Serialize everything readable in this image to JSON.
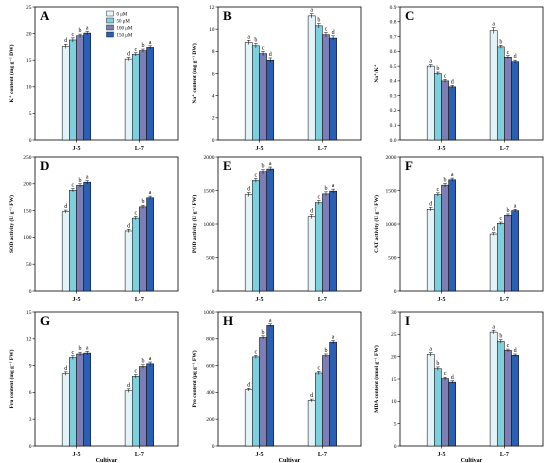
{
  "colors": {
    "series": [
      "#e3f3f8",
      "#7fcfdf",
      "#7b7fb5",
      "#2d5fb0"
    ],
    "frame": "#000000"
  },
  "legend": [
    "0 μM",
    "50 μM",
    "100 μM",
    "150 μM"
  ],
  "x_axis_title": "Cultivar",
  "chart_data": [
    {
      "type": "bar",
      "panel": "A",
      "ylabel": "K⁺ content (mg g⁻¹ DW)",
      "categories": [
        "J-5",
        "L-7"
      ],
      "ylim": [
        0,
        25
      ],
      "ticks": [
        0,
        5,
        10,
        15,
        20,
        25
      ],
      "series": [
        {
          "name": "0 μM",
          "values": [
            17.6,
            15.2
          ]
        },
        {
          "name": "50 μM",
          "values": [
            18.8,
            16.1
          ]
        },
        {
          "name": "100 μM",
          "values": [
            19.6,
            16.8
          ]
        },
        {
          "name": "150 μM",
          "values": [
            20.1,
            17.4
          ]
        }
      ],
      "errors": [
        [
          0.4,
          0.3
        ],
        [
          0.4,
          0.3
        ],
        [
          0.3,
          0.3
        ],
        [
          0.3,
          0.3
        ]
      ],
      "letters": [
        [
          "d",
          "c",
          "b",
          "a"
        ],
        [
          "d",
          "c",
          "b",
          "a"
        ]
      ]
    },
    {
      "type": "bar",
      "panel": "B",
      "ylabel": "Na⁺ content (mg g⁻¹ DW)",
      "categories": [
        "J-5",
        "L-7"
      ],
      "ylim": [
        0,
        12
      ],
      "ticks": [
        0,
        2,
        4,
        6,
        8,
        10,
        12
      ],
      "series": [
        {
          "name": "0 μM",
          "values": [
            8.8,
            11.2
          ]
        },
        {
          "name": "50 μM",
          "values": [
            8.5,
            10.3
          ]
        },
        {
          "name": "100 μM",
          "values": [
            7.8,
            9.5
          ]
        },
        {
          "name": "150 μM",
          "values": [
            7.2,
            9.2
          ]
        }
      ],
      "errors": [
        [
          0.2,
          0.2
        ],
        [
          0.2,
          0.2
        ],
        [
          0.2,
          0.2
        ],
        [
          0.2,
          0.2
        ]
      ],
      "letters": [
        [
          "a",
          "b",
          "c",
          "d"
        ],
        [
          "a",
          "b",
          "c",
          "d"
        ]
      ]
    },
    {
      "type": "bar",
      "panel": "C",
      "ylabel": "Na⁺/K⁺",
      "categories": [
        "J-5",
        "L-7"
      ],
      "ylim": [
        0,
        0.9
      ],
      "ticks": [
        0.0,
        0.1,
        0.2,
        0.3,
        0.4,
        0.5,
        0.6,
        0.7,
        0.8,
        0.9
      ],
      "series": [
        {
          "name": "0 μM",
          "values": [
            0.5,
            0.74
          ]
        },
        {
          "name": "50 μM",
          "values": [
            0.45,
            0.63
          ]
        },
        {
          "name": "100 μM",
          "values": [
            0.4,
            0.56
          ]
        },
        {
          "name": "150 μM",
          "values": [
            0.36,
            0.53
          ]
        }
      ],
      "errors": [
        [
          0.01,
          0.02
        ],
        [
          0.01,
          0.01
        ],
        [
          0.01,
          0.01
        ],
        [
          0.01,
          0.01
        ]
      ],
      "letters": [
        [
          "a",
          "b",
          "c",
          "d"
        ],
        [
          "a",
          "b",
          "c",
          "d"
        ]
      ]
    },
    {
      "type": "bar",
      "panel": "D",
      "ylabel": "SOD activity (U g⁻¹ FW)",
      "categories": [
        "J-5",
        "L-7"
      ],
      "ylim": [
        0,
        250
      ],
      "ticks": [
        0,
        50,
        100,
        150,
        200,
        250
      ],
      "series": [
        {
          "name": "0 μM",
          "values": [
            148,
            112
          ]
        },
        {
          "name": "50 μM",
          "values": [
            188,
            136
          ]
        },
        {
          "name": "100 μM",
          "values": [
            197,
            157
          ]
        },
        {
          "name": "150 μM",
          "values": [
            203,
            174
          ]
        }
      ],
      "errors": [
        [
          3,
          3
        ],
        [
          3,
          3
        ],
        [
          3,
          3
        ],
        [
          3,
          3
        ]
      ],
      "letters": [
        [
          "d",
          "c",
          "b",
          "a"
        ],
        [
          "d",
          "c",
          "b",
          "a"
        ]
      ]
    },
    {
      "type": "bar",
      "panel": "E",
      "ylabel": "POD activity (U g⁻¹ FW)",
      "categories": [
        "J-5",
        "L-7"
      ],
      "ylim": [
        0,
        2000
      ],
      "ticks": [
        0,
        500,
        1000,
        1500,
        2000
      ],
      "series": [
        {
          "name": "0 μM",
          "values": [
            1440,
            1110
          ]
        },
        {
          "name": "50 μM",
          "values": [
            1650,
            1320
          ]
        },
        {
          "name": "100 μM",
          "values": [
            1780,
            1450
          ]
        },
        {
          "name": "150 μM",
          "values": [
            1820,
            1490
          ]
        }
      ],
      "errors": [
        [
          30,
          30
        ],
        [
          30,
          30
        ],
        [
          30,
          30
        ],
        [
          30,
          30
        ]
      ],
      "letters": [
        [
          "d",
          "c",
          "b",
          "a"
        ],
        [
          "d",
          "c",
          "b",
          "a"
        ]
      ]
    },
    {
      "type": "bar",
      "panel": "F",
      "ylabel": "CAT activity (U g⁻¹ FW)",
      "categories": [
        "J-5",
        "L-7"
      ],
      "ylim": [
        0,
        2000
      ],
      "ticks": [
        0,
        500,
        1000,
        1500,
        2000
      ],
      "series": [
        {
          "name": "0 μM",
          "values": [
            1220,
            850
          ]
        },
        {
          "name": "50 μM",
          "values": [
            1440,
            1010
          ]
        },
        {
          "name": "100 μM",
          "values": [
            1580,
            1130
          ]
        },
        {
          "name": "150 μM",
          "values": [
            1660,
            1200
          ]
        }
      ],
      "errors": [
        [
          25,
          20
        ],
        [
          25,
          20
        ],
        [
          25,
          20
        ],
        [
          25,
          20
        ]
      ],
      "letters": [
        [
          "d",
          "c",
          "b",
          "a"
        ],
        [
          "d",
          "c",
          "b",
          "a"
        ]
      ]
    },
    {
      "type": "bar",
      "panel": "G",
      "ylabel": "Fru content (mg g⁻¹ FW)",
      "categories": [
        "J-5",
        "L-7"
      ],
      "ylim": [
        0,
        15
      ],
      "ticks": [
        0,
        3,
        6,
        9,
        12,
        15
      ],
      "series": [
        {
          "name": "0 μM",
          "values": [
            8.1,
            6.2
          ]
        },
        {
          "name": "50 μM",
          "values": [
            9.9,
            7.8
          ]
        },
        {
          "name": "100 μM",
          "values": [
            10.3,
            8.9
          ]
        },
        {
          "name": "150 μM",
          "values": [
            10.4,
            9.2
          ]
        }
      ],
      "errors": [
        [
          0.2,
          0.2
        ],
        [
          0.2,
          0.2
        ],
        [
          0.2,
          0.2
        ],
        [
          0.2,
          0.2
        ]
      ],
      "letters": [
        [
          "d",
          "c",
          "b",
          "a"
        ],
        [
          "d",
          "c",
          "b",
          "a"
        ]
      ]
    },
    {
      "type": "bar",
      "panel": "H",
      "ylabel": "Pro content (μg g⁻¹ FW)",
      "categories": [
        "J-5",
        "L-7"
      ],
      "ylim": [
        0,
        1000
      ],
      "ticks": [
        0,
        200,
        400,
        600,
        800,
        1000
      ],
      "series": [
        {
          "name": "0 μM",
          "values": [
            420,
            340
          ]
        },
        {
          "name": "50 μM",
          "values": [
            665,
            545
          ]
        },
        {
          "name": "100 μM",
          "values": [
            810,
            675
          ]
        },
        {
          "name": "150 μM",
          "values": [
            900,
            775
          ]
        }
      ],
      "errors": [
        [
          10,
          10
        ],
        [
          12,
          12
        ],
        [
          12,
          12
        ],
        [
          12,
          12
        ]
      ],
      "letters": [
        [
          "d",
          "c",
          "b",
          "a"
        ],
        [
          "d",
          "c",
          "b",
          "a"
        ]
      ]
    },
    {
      "type": "bar",
      "panel": "I",
      "ylabel": "MDA content (nmol g⁻¹ FW)",
      "categories": [
        "J-5",
        "L-7"
      ],
      "ylim": [
        0,
        30
      ],
      "ticks": [
        0,
        5,
        10,
        15,
        20,
        25,
        30
      ],
      "series": [
        {
          "name": "0 μM",
          "values": [
            20.5,
            25.5
          ]
        },
        {
          "name": "50 μM",
          "values": [
            17.3,
            23.4
          ]
        },
        {
          "name": "100 μM",
          "values": [
            15.1,
            21.4
          ]
        },
        {
          "name": "150 μM",
          "values": [
            14.3,
            20.3
          ]
        }
      ],
      "errors": [
        [
          0.4,
          0.4
        ],
        [
          0.4,
          0.4
        ],
        [
          0.3,
          0.3
        ],
        [
          0.3,
          0.3
        ]
      ],
      "letters": [
        [
          "a",
          "b",
          "c",
          "d"
        ],
        [
          "a",
          "b",
          "c",
          "d"
        ]
      ]
    }
  ]
}
